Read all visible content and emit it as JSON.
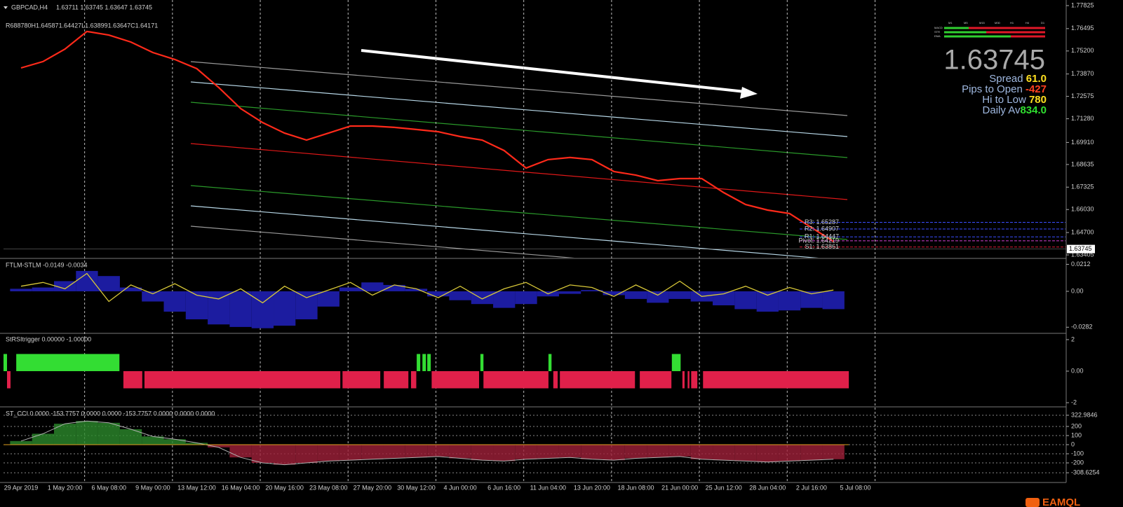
{
  "header": {
    "symbol": "GBPCAD,H4",
    "quote": "1.63711 1.63745 1.63647 1.63745",
    "range_line": "R688780H1.645871.64427L1.638991.63647C1.64171"
  },
  "xaxis": {
    "xlim": [
      -0.4,
      23.8
    ],
    "xticks": [
      {
        "value": 0,
        "label": "29 Apr 2019"
      },
      {
        "value": 1,
        "label": "1 May 20:00"
      },
      {
        "value": 2,
        "label": "6 May 08:00"
      },
      {
        "value": 3,
        "label": "9 May 00:00"
      },
      {
        "value": 4,
        "label": "13 May 12:00"
      },
      {
        "value": 5,
        "label": "16 May 04:00"
      },
      {
        "value": 6,
        "label": "20 May 16:00"
      },
      {
        "value": 7,
        "label": "23 May 08:00"
      },
      {
        "value": 8,
        "label": "27 May 20:00"
      },
      {
        "value": 9,
        "label": "30 May 12:00"
      },
      {
        "value": 10,
        "label": "4 Jun 00:00"
      },
      {
        "value": 11,
        "label": "6 Jun 16:00"
      },
      {
        "value": 12,
        "label": "11 Jun 04:00"
      },
      {
        "value": 13,
        "label": "13 Jun 20:00"
      },
      {
        "value": 14,
        "label": "18 Jun 08:00"
      },
      {
        "value": 15,
        "label": "21 Jun 00:00"
      },
      {
        "value": 16,
        "label": "25 Jun 12:00"
      },
      {
        "value": 17,
        "label": "28 Jun 04:00"
      },
      {
        "value": 18,
        "label": "2 Jul 16:00"
      },
      {
        "value": 19,
        "label": "5 Jul 08:00"
      }
    ]
  },
  "x": [
    0,
    0.5,
    1,
    1.5,
    2,
    2.5,
    3,
    3.5,
    4,
    4.5,
    5,
    5.5,
    6,
    6.5,
    7,
    7.5,
    8,
    8.5,
    9,
    9.5,
    10,
    10.5,
    11,
    11.5,
    12,
    12.5,
    13,
    13.5,
    14,
    14.5,
    15,
    15.5,
    16,
    16.5,
    17,
    17.5,
    18,
    18.5
  ],
  "price_pane": {
    "ylim": [
      1.63244,
      1.77946
    ],
    "yticks": [
      1.77825,
      1.76495,
      {
        "value": 1.752,
        "label": "1.75200"
      },
      {
        "value": 1.7387,
        "label": "1.73870"
      },
      1.72575,
      {
        "value": 1.7128,
        "label": "1.71280"
      },
      {
        "value": 1.6991,
        "label": "1.69910"
      },
      1.68635,
      1.67325,
      {
        "value": 1.6603,
        "label": "1.66030"
      },
      {
        "value": 1.647,
        "label": "1.64700"
      },
      1.63405
    ],
    "current": 1.63745,
    "color": "#ff2a1a",
    "values": [
      1.7422,
      1.7459,
      1.7531,
      1.7633,
      1.7612,
      1.7572,
      1.7511,
      1.7471,
      1.7418,
      1.7309,
      1.7187,
      1.7106,
      1.7045,
      1.7005,
      1.7045,
      1.7086,
      1.7086,
      1.7078,
      1.7066,
      1.7053,
      1.7025,
      1.7005,
      1.6944,
      1.6843,
      1.6892,
      1.6904,
      1.6892,
      1.6823,
      1.6802,
      1.677,
      1.6782,
      1.6782,
      1.6701,
      1.6632,
      1.66,
      1.658,
      1.6499,
      1.6418
    ],
    "levels": [
      {
        "value": 1.65287,
        "label": "R3: 1.65287",
        "color": "#3b4dff"
      },
      {
        "value": 1.64907,
        "label": "R2: 1.64907",
        "color": "#3b4dff"
      },
      {
        "value": 1.64447,
        "label": "R1: 1.64447",
        "color": "#3b4dff"
      },
      {
        "value": 1.64219,
        "label": "Pivot: 1.64219",
        "color": "#d040d0"
      },
      {
        "value": 1.63861,
        "label": "S1: 1.63861",
        "color": "#e0203a"
      }
    ]
  },
  "info": {
    "price": "1.63745",
    "rows": [
      {
        "label": "Spread ",
        "value": "61.0",
        "color": "#ffe020"
      },
      {
        "label": "Pips to Open ",
        "value": "-427",
        "color": "#ff4020"
      },
      {
        "label": "Hi to Low ",
        "value": "780",
        "color": "#ffe020"
      },
      {
        "label": "Daily Av",
        "value": "834.0",
        "color": "#30e030"
      }
    ],
    "timeframes": [
      "M1",
      "M5",
      "M15",
      "M30",
      "H1",
      "H4",
      "D1"
    ],
    "indicators": [
      "MACD",
      "STR",
      "EMA"
    ]
  },
  "ftlm_pane": {
    "title": "FTLM-STLM -0.0149 -0.0034",
    "ylim": [
      -0.0319,
      0.0242
    ],
    "yticks": [
      0.0212,
      {
        "value": 0,
        "label": "0.00"
      },
      -0.0282
    ],
    "hist_color": "#1c1ca0",
    "line_color": "#d8c838",
    "hist": [
      0.002,
      0.003,
      0.008,
      0.016,
      0.012,
      0.003,
      -0.008,
      -0.016,
      -0.022,
      -0.026,
      -0.028,
      -0.029,
      -0.027,
      -0.022,
      -0.012,
      0.003,
      0.007,
      0.005,
      0.002,
      -0.004,
      -0.007,
      -0.01,
      -0.013,
      -0.01,
      -0.004,
      -0.002,
      0.001,
      -0.003,
      -0.006,
      -0.009,
      -0.006,
      -0.008,
      -0.011,
      -0.014,
      -0.016,
      -0.015,
      -0.013,
      -0.014
    ],
    "line": [
      0.004,
      0.007,
      0.002,
      0.014,
      -0.008,
      0.005,
      -0.002,
      0.006,
      -0.003,
      -0.006,
      0.002,
      -0.009,
      0.004,
      -0.005,
      0.001,
      0.007,
      -0.003,
      0.005,
      0.002,
      -0.005,
      0.004,
      -0.006,
      0.002,
      0.007,
      -0.002,
      0.005,
      0.003,
      -0.004,
      0.005,
      -0.003,
      0.008,
      -0.004,
      -0.002,
      0.004,
      -0.003,
      0.003,
      -0.002,
      0.001
    ]
  },
  "strsi_pane": {
    "title": "StRSItrigger 0.00000 -1.00000",
    "ylim": [
      -2.22,
      2.31
    ],
    "yticks": [
      2,
      {
        "value": 0,
        "label": "0.00"
      },
      -2
    ],
    "up_color": "#33dd33",
    "down_color": "#e0204a",
    "blocks": [
      {
        "start": -0.4,
        "end": -0.32,
        "value": 1
      },
      {
        "start": -0.11,
        "end": 2.24,
        "value": 1
      },
      {
        "start": 9.01,
        "end": 9.09,
        "value": 1
      },
      {
        "start": 9.14,
        "end": 9.22,
        "value": 1
      },
      {
        "start": 9.25,
        "end": 9.33,
        "value": 1
      },
      {
        "start": 10.46,
        "end": 10.53,
        "value": 1
      },
      {
        "start": 12.01,
        "end": 12.08,
        "value": 1
      },
      {
        "start": 14.82,
        "end": 15.02,
        "value": 1
      },
      {
        "start": -0.32,
        "end": -0.24,
        "value": -1
      },
      {
        "start": 2.33,
        "end": 2.76,
        "value": -1
      },
      {
        "start": 2.81,
        "end": 7.27,
        "value": -1
      },
      {
        "start": 7.32,
        "end": 8.18,
        "value": -1
      },
      {
        "start": 8.26,
        "end": 8.82,
        "value": -1
      },
      {
        "start": 8.88,
        "end": 9.0,
        "value": -1
      },
      {
        "start": 9.35,
        "end": 10.43,
        "value": -1
      },
      {
        "start": 10.53,
        "end": 12.01,
        "value": -1
      },
      {
        "start": 12.12,
        "end": 12.22,
        "value": -1
      },
      {
        "start": 12.27,
        "end": 13.98,
        "value": -1
      },
      {
        "start": 14.09,
        "end": 14.81,
        "value": -1
      },
      {
        "start": 15.06,
        "end": 15.11,
        "value": -1
      },
      {
        "start": 15.18,
        "end": 15.22,
        "value": -1
      },
      {
        "start": 15.26,
        "end": 15.4,
        "value": -1
      },
      {
        "start": 15.53,
        "end": 18.85,
        "value": -1
      }
    ]
  },
  "cci_pane": {
    "title": "ST_CCI 0.0000 -153.7757 0.0000 0.0000 -153.7757 0.0000 0.0000 0.0000",
    "ylim": [
      -400,
      392
    ],
    "yticks": [
      322.9846,
      200,
      100,
      0,
      -100,
      -200,
      -308.6254
    ],
    "pos_color": "#2c8a2c",
    "neg_color": "#a0203a",
    "line_color": "#b0b0b0",
    "values": [
      40,
      120,
      230,
      260,
      240,
      170,
      90,
      60,
      20,
      -30,
      -140,
      -200,
      -220,
      -200,
      -180,
      -170,
      -160,
      -150,
      -140,
      -130,
      -150,
      -170,
      -180,
      -160,
      -150,
      -140,
      -160,
      -170,
      -150,
      -140,
      -130,
      -160,
      -170,
      -180,
      -190,
      -180,
      -170,
      -160
    ]
  },
  "logo": "EAMQL"
}
